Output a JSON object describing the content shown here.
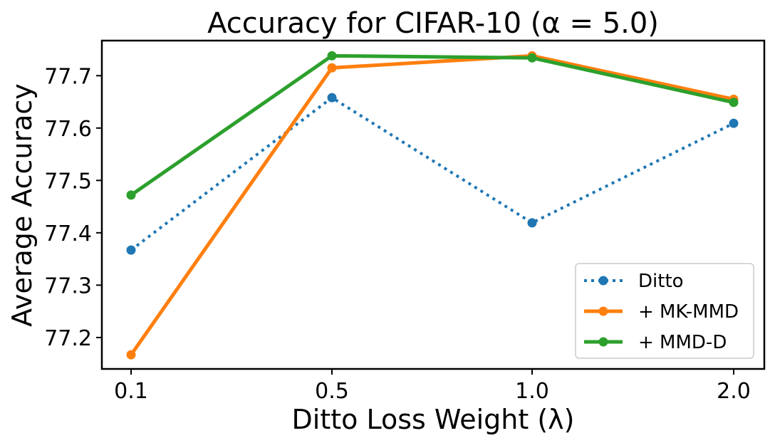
{
  "chart_data": {
    "type": "line",
    "title": "Accuracy for CIFAR-10 (α = 5.0)",
    "xlabel": "Ditto Loss Weight (λ)",
    "ylabel": "Average Accuracy",
    "categories": [
      "0.1",
      "0.5",
      "1.0",
      "2.0"
    ],
    "yticks": [
      "77.2",
      "77.3",
      "77.4",
      "77.5",
      "77.6",
      "77.7"
    ],
    "ylim": [
      77.14,
      77.767
    ],
    "grid": false,
    "legend_position": "lower-right",
    "series": [
      {
        "name": "Ditto",
        "values": [
          77.367,
          77.658,
          77.419,
          77.609
        ],
        "color": "#1f77b4",
        "style": "dotted"
      },
      {
        "name": "+ MK-MMD",
        "values": [
          77.167,
          77.715,
          77.738,
          77.655
        ],
        "color": "#ff7f0e",
        "style": "solid"
      },
      {
        "name": "+ MMD-D",
        "values": [
          77.472,
          77.738,
          77.734,
          77.649
        ],
        "color": "#2ca02c",
        "style": "solid"
      }
    ]
  }
}
